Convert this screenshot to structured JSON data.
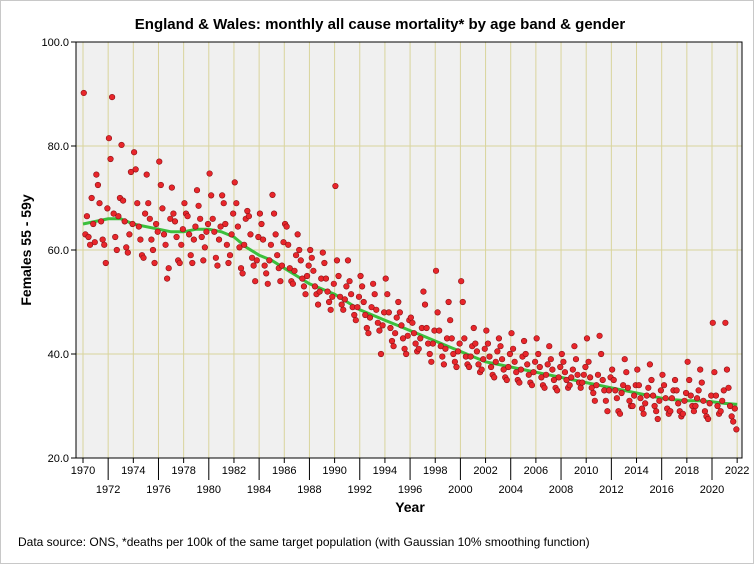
{
  "chart_data": {
    "type": "scatter",
    "title": "England & Wales: monthly all cause mortality* by age band & gender",
    "xlabel": "Year",
    "ylabel": "Females 55 - 59y",
    "footnote": "Data source: ONS, *deaths per 100k of the same target population (with Gaussian 10% smoothing function)",
    "xlim": [
      1970,
      2022
    ],
    "ylim": [
      20,
      100
    ],
    "x_ticks": [
      "1970",
      "1972",
      "1974",
      "1976",
      "1978",
      "1980",
      "1982",
      "1984",
      "1986",
      "1988",
      "1990",
      "1992",
      "1994",
      "1996",
      "1998",
      "2000",
      "2002",
      "2004",
      "2006",
      "2008",
      "2010",
      "2012",
      "2014",
      "2016",
      "2018",
      "2020",
      "2022"
    ],
    "y_ticks": [
      "20.0",
      "40.0",
      "60.0",
      "80.0",
      "100.0"
    ],
    "grid": true,
    "colors": {
      "points": "#e8262b",
      "point_edge": "#8b1015",
      "smooth": "#3cbf3c",
      "plot_bg": "#f0f0f0",
      "grid": "#d9d49c"
    },
    "points_by_year": {
      "1970": [
        90.2,
        63,
        66.5,
        62.5,
        61,
        70,
        65,
        61.5
      ],
      "1971": [
        74.5,
        72.5,
        69,
        65.5,
        62,
        61,
        57.5,
        68
      ],
      "1972": [
        81.5,
        77.5,
        89.4,
        67,
        62.5,
        60,
        66.5,
        70
      ],
      "1973": [
        80.2,
        69.5,
        65.5,
        60.5,
        59.5,
        63,
        75,
        65
      ],
      "1974": [
        78.8,
        75.5,
        69,
        64.5,
        62,
        59,
        58.5,
        67
      ],
      "1975": [
        74.5,
        69,
        66,
        62,
        60,
        57.5,
        65,
        63.5
      ],
      "1976": [
        77,
        72.5,
        68,
        63,
        61,
        54.5,
        56.5,
        66
      ],
      "1977": [
        72,
        67,
        65.5,
        62.5,
        58,
        57.5,
        61,
        64
      ],
      "1978": [
        69,
        67,
        66.5,
        63,
        59,
        57.5,
        62,
        64.5
      ],
      "1979": [
        71.5,
        68.5,
        66,
        62.5,
        58,
        60.5,
        63.5,
        65
      ],
      "1980": [
        74.7,
        70.5,
        66,
        63.5,
        58.5,
        57,
        62,
        64.5
      ],
      "1981": [
        70.5,
        69,
        65,
        61,
        57.5,
        59,
        63,
        67
      ],
      "1982": [
        73,
        69,
        64.5,
        60.5,
        56.5,
        55.5,
        61,
        66
      ],
      "1983": [
        67.5,
        66.5,
        63,
        58.5,
        57,
        54,
        58,
        62.5
      ],
      "1984": [
        67,
        65,
        62,
        57,
        55.5,
        53.5,
        58,
        61
      ],
      "1985": [
        70.6,
        67,
        63,
        59,
        56.5,
        54,
        57,
        61.5
      ],
      "1986": [
        65,
        64.5,
        61,
        56.5,
        54,
        53.5,
        56,
        59
      ],
      "1987": [
        63,
        60,
        58,
        54.5,
        53,
        51.5,
        55,
        57
      ],
      "1988": [
        60,
        58.5,
        56,
        53,
        51.5,
        49.5,
        52,
        54.5
      ],
      "1989": [
        59.5,
        57.5,
        54.5,
        52,
        50,
        48.5,
        51,
        53.5
      ],
      "1990": [
        72.3,
        58,
        55,
        51,
        49.5,
        48.5,
        50.5,
        53
      ],
      "1991": [
        58,
        54,
        51.5,
        49,
        47.5,
        46.5,
        49,
        51
      ],
      "1992": [
        55,
        53,
        50,
        47.5,
        45,
        44,
        47,
        49
      ],
      "1993": [
        53.5,
        51.5,
        48.5,
        46,
        44.5,
        40,
        45.5,
        48
      ],
      "1994": [
        54.5,
        51.5,
        48,
        45,
        42.5,
        41.5,
        44,
        47
      ],
      "1995": [
        50,
        48,
        45.5,
        43,
        41,
        40,
        43.5,
        46.5
      ],
      "1996": [
        47,
        46,
        44,
        42,
        40.5,
        41,
        43,
        45
      ],
      "1997": [
        52,
        49.5,
        45,
        42,
        40,
        38.5,
        42,
        44.5
      ],
      "1998": [
        56,
        48,
        44.5,
        41.5,
        39.5,
        38,
        41,
        43
      ],
      "1999": [
        50,
        46.5,
        43,
        40,
        38.5,
        37.5,
        40.5,
        42
      ],
      "2000": [
        54,
        50,
        43,
        39.5,
        38,
        37.5,
        39.5,
        41.5
      ],
      "2001": [
        45,
        42,
        40.5,
        38,
        36.5,
        37,
        39,
        41
      ],
      "2002": [
        44.5,
        42,
        39.5,
        37.5,
        36,
        35.5,
        38.5,
        40.5
      ],
      "2003": [
        43,
        41.5,
        39,
        37,
        35.5,
        35,
        37.5,
        40
      ],
      "2004": [
        44,
        41,
        38.5,
        36.5,
        35,
        34.5,
        37,
        39.5
      ],
      "2005": [
        42.5,
        40,
        38,
        36,
        34.5,
        34,
        36.5,
        38.5
      ],
      "2006": [
        43,
        40,
        37.5,
        35.5,
        34,
        33.5,
        36,
        38
      ],
      "2007": [
        41.5,
        39,
        37,
        35,
        33.5,
        33,
        35.5,
        37.5
      ],
      "2008": [
        40,
        38.5,
        36.5,
        35,
        33.5,
        34,
        35.5,
        37
      ],
      "2009": [
        41.5,
        39,
        36,
        34.5,
        33.5,
        34.5,
        36,
        37.5
      ],
      "2010": [
        43,
        38.5,
        35.5,
        33.5,
        32.5,
        31,
        34,
        36
      ],
      "2011": [
        43.5,
        40,
        35,
        33,
        31,
        29,
        33,
        35.5
      ],
      "2012": [
        37,
        35,
        33,
        31.5,
        29,
        28.5,
        32.5,
        34
      ],
      "2013": [
        39,
        36.5,
        33.5,
        31,
        30,
        30,
        32,
        34
      ],
      "2014": [
        37,
        34,
        31.5,
        29.5,
        28.5,
        30.5,
        32,
        33.5
      ],
      "2015": [
        38,
        35,
        32,
        30,
        29,
        27.5,
        31,
        33
      ],
      "2016": [
        36,
        34,
        31.5,
        29.5,
        28.5,
        29,
        31.5,
        33
      ],
      "2017": [
        35,
        33,
        30.5,
        29,
        28,
        28.5,
        31,
        32.5
      ],
      "2018": [
        38.5,
        35,
        32,
        30,
        29,
        30,
        31.5,
        33
      ],
      "2019": [
        37,
        34.5,
        31,
        29,
        28,
        27.5,
        30.5,
        32
      ],
      "2020": [
        46,
        36.5,
        32,
        30,
        28.5,
        29,
        31,
        33
      ],
      "2021": [
        46,
        37,
        33.5,
        30,
        28,
        27,
        29.5,
        25.5
      ]
    },
    "smooth_line": {
      "x": [
        1970,
        1972,
        1973,
        1974,
        1976,
        1977,
        1978,
        1979,
        1980,
        1981,
        1982,
        1983,
        1984,
        1985,
        1986,
        1987,
        1988,
        1989,
        1990,
        1991,
        1992,
        1993,
        1994,
        1995,
        1996,
        1997,
        1998,
        1999,
        2000,
        2001,
        2002,
        2003,
        2004,
        2005,
        2006,
        2007,
        2008,
        2009,
        2010,
        2011,
        2012,
        2013,
        2014,
        2015,
        2016,
        2017,
        2018,
        2019,
        2020,
        2021,
        2022
      ],
      "y": [
        65,
        66,
        66,
        65,
        64,
        63.5,
        63.5,
        64,
        64,
        63.5,
        62.5,
        60.5,
        59,
        58,
        56.5,
        55,
        53.5,
        52.5,
        51.5,
        50,
        48.5,
        47.5,
        46.5,
        45.5,
        44.5,
        43.5,
        42.5,
        41.5,
        40.5,
        39.5,
        38.5,
        38,
        37.5,
        37,
        36.5,
        36,
        35.5,
        35,
        34.5,
        34,
        33.5,
        33,
        32.5,
        32,
        31.5,
        31.2,
        31,
        31,
        30.8,
        30.5,
        30.3
      ]
    }
  }
}
